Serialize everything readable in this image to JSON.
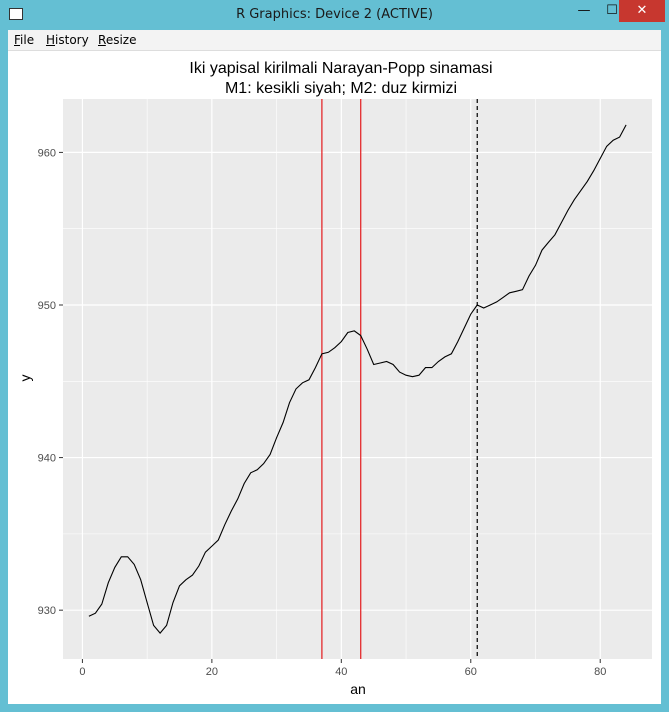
{
  "window": {
    "title": "R Graphics: Device 2 (ACTIVE)",
    "controls": {
      "minimize": "—",
      "maximize": "☐",
      "close": "✕"
    }
  },
  "menu": [
    {
      "first": "F",
      "rest": "ile"
    },
    {
      "first": "H",
      "rest": "istory"
    },
    {
      "first": "R",
      "rest": "esize"
    }
  ],
  "chart_data": {
    "type": "line",
    "title": "Iki yapisal kirilmali Narayan-Popp sinamasi",
    "subtitle": "M1: kesikli siyah; M2: duz kirmizi",
    "xlabel": "an",
    "ylabel": "y",
    "xlim": [
      -3,
      88
    ],
    "ylim": [
      926.8,
      963.5
    ],
    "x_ticks": [
      0,
      20,
      40,
      60,
      80
    ],
    "y_ticks": [
      930,
      940,
      950,
      960
    ],
    "x_tick_labels": [
      "0",
      "20",
      "40",
      "60",
      "80"
    ],
    "y_tick_labels": [
      "930",
      "940",
      "950",
      "960"
    ],
    "grid": true,
    "colors": {
      "panel": "#ebebeb",
      "grid": "#ffffff",
      "line": "#000000",
      "break_m1": "#000000",
      "break_m2": "#e31a1c"
    },
    "series": [
      {
        "x": [
          1,
          2,
          3,
          4,
          5,
          6,
          7,
          8,
          9,
          10,
          11,
          12,
          13,
          14,
          15,
          16,
          17,
          18,
          19,
          20,
          21,
          22,
          23,
          24,
          25,
          26,
          27,
          28,
          29,
          30,
          31,
          32,
          33,
          34,
          35,
          36,
          37,
          38,
          39,
          40,
          41,
          42,
          43,
          44,
          45,
          46,
          47,
          48,
          49,
          50,
          51,
          52,
          53,
          54,
          55,
          56,
          57,
          58,
          59,
          60,
          61,
          62,
          63,
          64,
          65,
          66,
          67,
          68,
          69,
          70,
          71,
          72,
          73,
          74,
          75,
          76,
          77,
          78,
          79,
          80,
          81,
          82,
          83,
          84
        ],
        "y": [
          929.6,
          929.8,
          930.4,
          931.8,
          932.8,
          933.5,
          933.5,
          933.0,
          932.0,
          930.5,
          929.0,
          928.5,
          929.0,
          930.5,
          931.6,
          932.0,
          932.3,
          932.9,
          933.8,
          934.2,
          934.6,
          935.6,
          936.5,
          937.3,
          938.3,
          939.0,
          939.2,
          939.6,
          940.2,
          941.3,
          942.3,
          943.6,
          944.5,
          944.9,
          945.1,
          945.9,
          946.8,
          946.9,
          947.2,
          947.6,
          948.2,
          948.3,
          948.0,
          947.1,
          946.1,
          946.2,
          946.3,
          946.1,
          945.6,
          945.4,
          945.3,
          945.4,
          945.9,
          945.9,
          946.3,
          946.6,
          946.8,
          947.6,
          948.5,
          949.4,
          950.0,
          949.8,
          950.0,
          950.2,
          950.5,
          950.8,
          950.9,
          951.0,
          951.9,
          952.6,
          953.6,
          954.1,
          954.6,
          955.4,
          956.2,
          956.9,
          957.5,
          958.1,
          958.8,
          959.6,
          960.4,
          960.8,
          961.0,
          961.8
        ]
      }
    ],
    "breaks": [
      {
        "model": "M1",
        "style": "dashed",
        "x": [
          61
        ]
      },
      {
        "model": "M2",
        "style": "solid",
        "x": [
          37,
          43
        ]
      }
    ]
  }
}
